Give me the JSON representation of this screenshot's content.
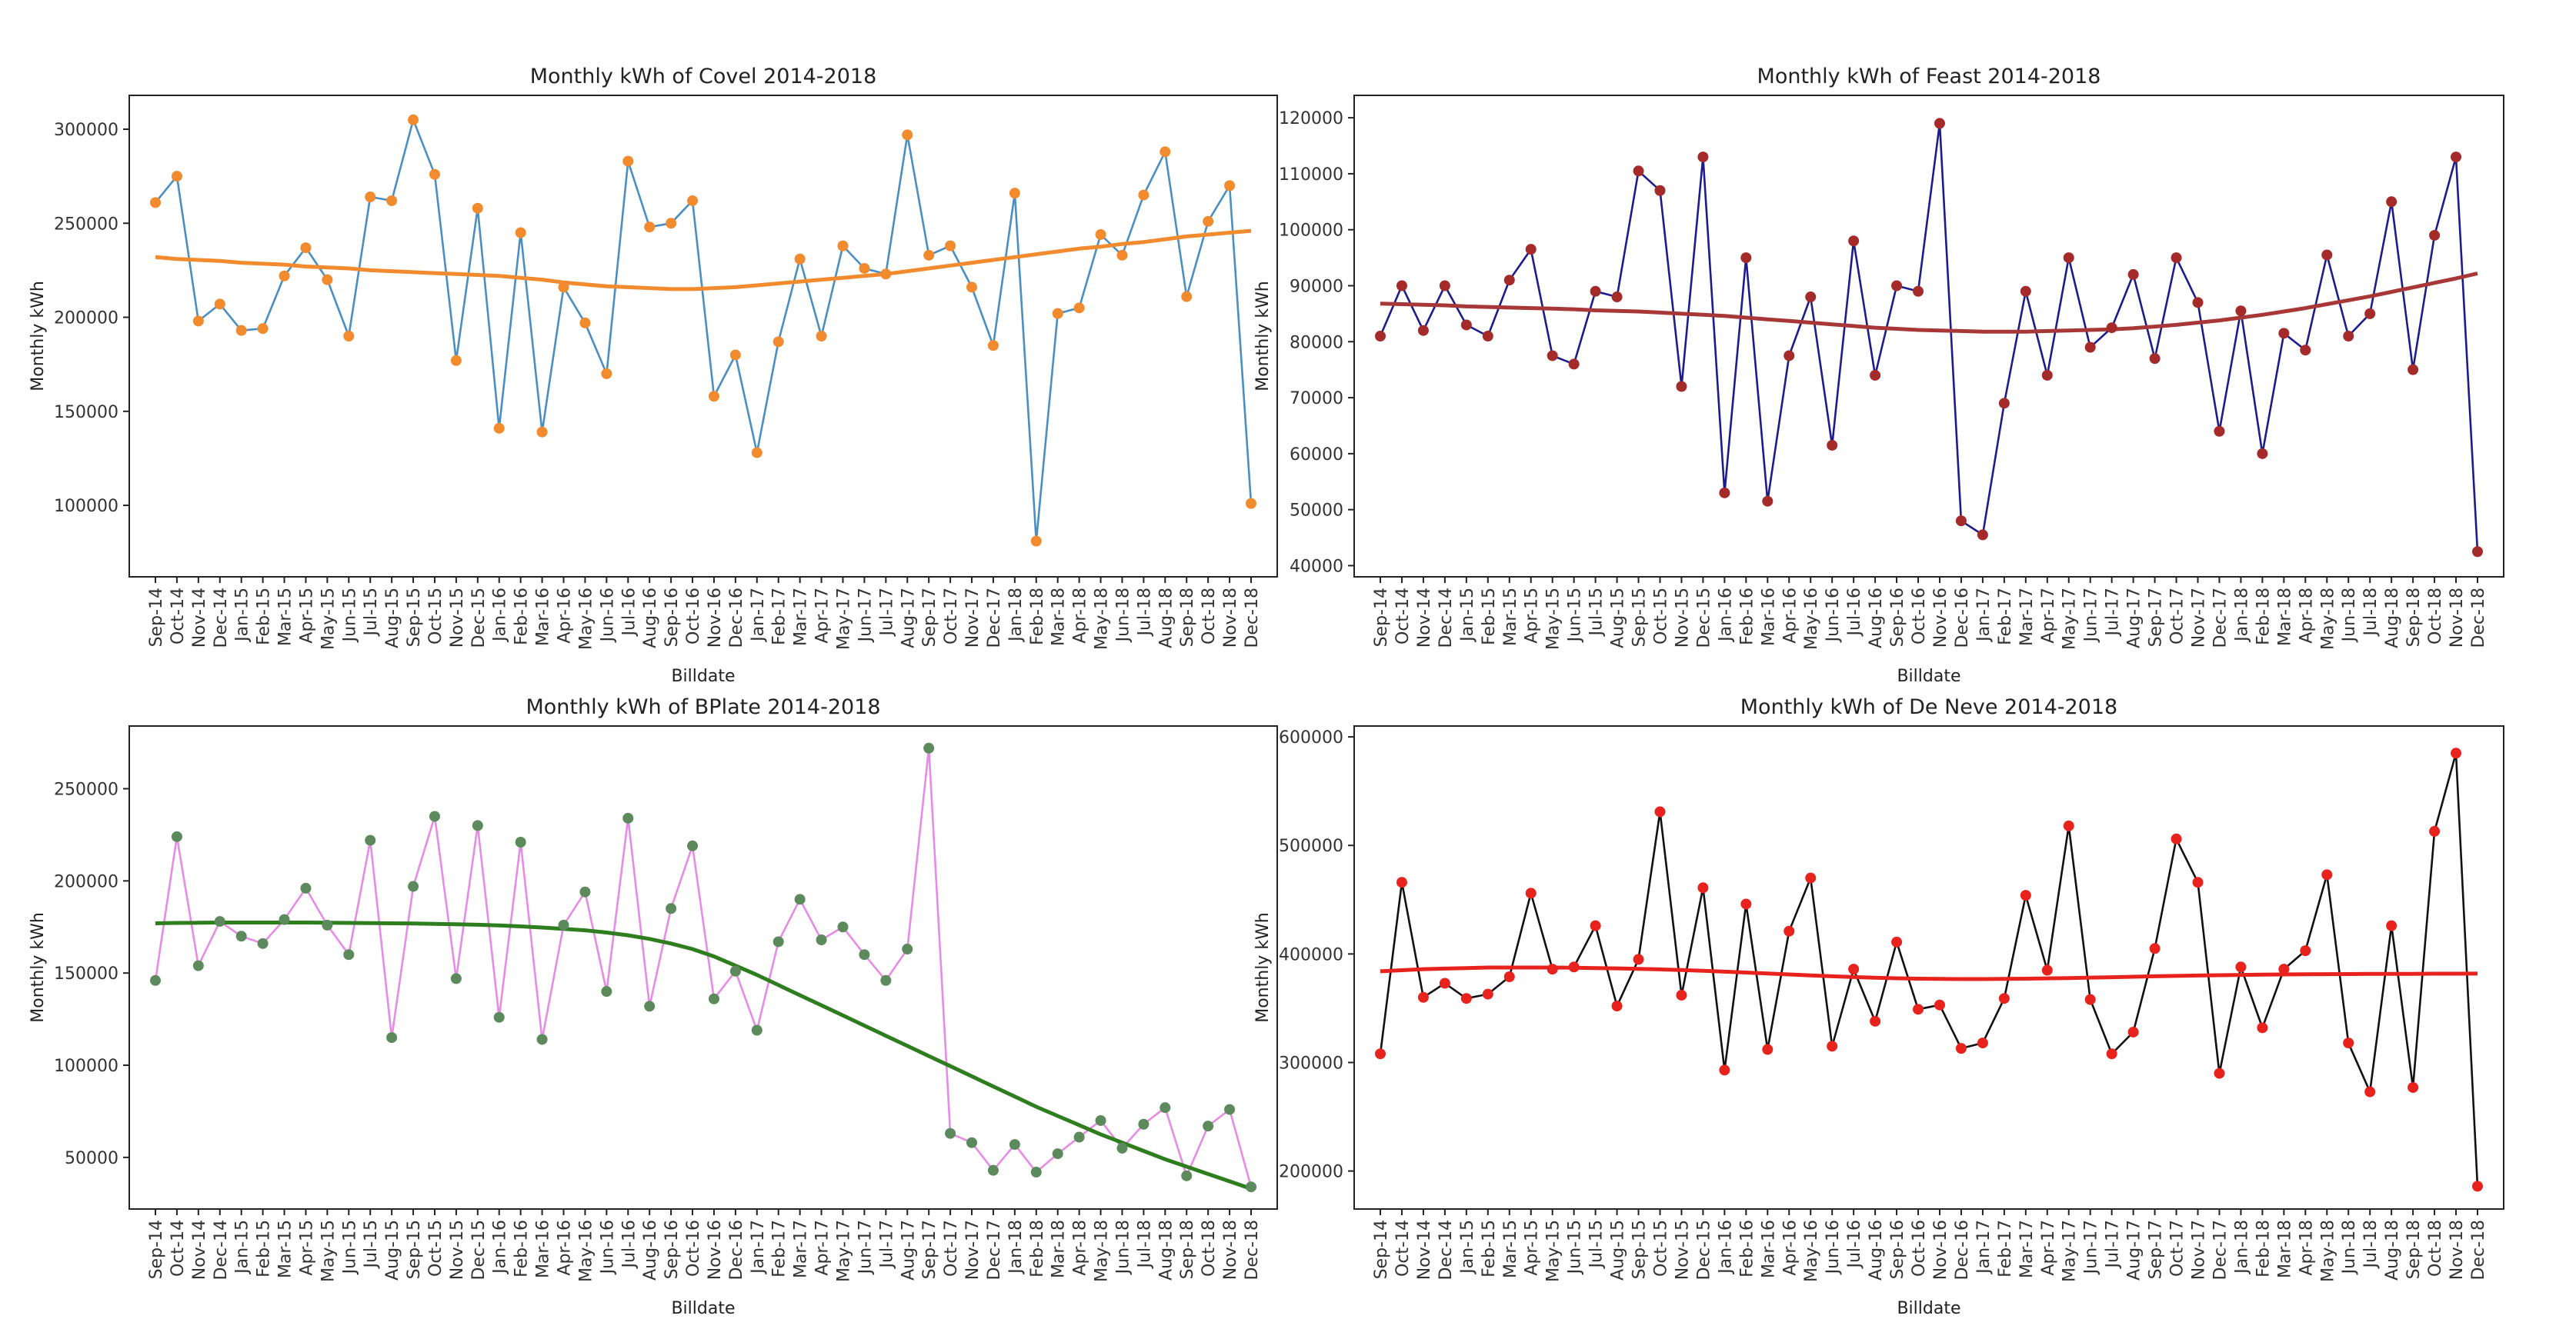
{
  "chart_data": [
    {
      "type": "line",
      "title": "Monthly kWh of Covel 2014-2018",
      "xlabel": "Billdate",
      "ylabel": "Monthly kWh",
      "categories": [
        "Sep-14",
        "Oct-14",
        "Nov-14",
        "Dec-14",
        "Jan-15",
        "Feb-15",
        "Mar-15",
        "Apr-15",
        "May-15",
        "Jun-15",
        "Jul-15",
        "Aug-15",
        "Sep-15",
        "Oct-15",
        "Nov-15",
        "Dec-15",
        "Jan-16",
        "Feb-16",
        "Mar-16",
        "Apr-16",
        "May-16",
        "Jun-16",
        "Jul-16",
        "Aug-16",
        "Sep-16",
        "Oct-16",
        "Nov-16",
        "Dec-16",
        "Jan-17",
        "Feb-17",
        "Mar-17",
        "Apr-17",
        "May-17",
        "Jun-17",
        "Jul-17",
        "Aug-17",
        "Sep-17",
        "Oct-17",
        "Nov-17",
        "Dec-17",
        "Jan-18",
        "Feb-18",
        "Mar-18",
        "Apr-18",
        "May-18",
        "Jun-18",
        "Jul-18",
        "Aug-18",
        "Sep-18",
        "Oct-18",
        "Nov-18",
        "Dec-18"
      ],
      "ylim": [
        62000,
        318000
      ],
      "yticks": [
        100000,
        150000,
        200000,
        250000,
        300000
      ],
      "grid": false,
      "series": [
        {
          "role": "monthly",
          "color": "#4a8ec2",
          "marker_color": "#f28a2e",
          "values": [
            261000,
            275000,
            198000,
            207000,
            193000,
            194000,
            222000,
            237000,
            220000,
            190000,
            264000,
            262000,
            305000,
            276000,
            177000,
            258000,
            141000,
            245000,
            139000,
            216000,
            197000,
            170000,
            283000,
            248000,
            250000,
            262000,
            158000,
            180000,
            128000,
            187000,
            231000,
            190000,
            238000,
            226000,
            223000,
            297000,
            233000,
            238000,
            216000,
            185000,
            266000,
            81000,
            202000,
            205000,
            244000,
            233000,
            265000,
            288000,
            211000,
            251000,
            270000,
            101000
          ]
        },
        {
          "role": "trend",
          "color": "#f28a2e",
          "values": [
            232000,
            231000,
            230500,
            230000,
            229000,
            228500,
            228000,
            227000,
            226500,
            226000,
            225000,
            224500,
            224000,
            223500,
            223000,
            222500,
            222000,
            221000,
            220000,
            218500,
            217500,
            216500,
            216000,
            215500,
            215000,
            215000,
            215500,
            216000,
            217000,
            218000,
            219000,
            220000,
            221000,
            222000,
            223000,
            224500,
            226000,
            227500,
            229000,
            230500,
            232000,
            233500,
            235000,
            236500,
            237500,
            239000,
            240000,
            241500,
            243000,
            244000,
            245000,
            246000
          ]
        }
      ]
    },
    {
      "type": "line",
      "title": "Monthly kWh of Feast 2014-2018",
      "xlabel": "Billdate",
      "ylabel": "Monthly kWh",
      "categories": [
        "Sep-14",
        "Oct-14",
        "Nov-14",
        "Dec-14",
        "Jan-15",
        "Feb-15",
        "Mar-15",
        "Apr-15",
        "May-15",
        "Jun-15",
        "Jul-15",
        "Aug-15",
        "Sep-15",
        "Oct-15",
        "Nov-15",
        "Dec-15",
        "Jan-16",
        "Feb-16",
        "Mar-16",
        "Apr-16",
        "May-16",
        "Jun-16",
        "Jul-16",
        "Aug-16",
        "Sep-16",
        "Oct-16",
        "Nov-16",
        "Dec-16",
        "Jan-17",
        "Feb-17",
        "Mar-17",
        "Apr-17",
        "May-17",
        "Jun-17",
        "Jul-17",
        "Aug-17",
        "Sep-17",
        "Oct-17",
        "Nov-17",
        "Dec-17",
        "Jan-18",
        "Feb-18",
        "Mar-18",
        "Apr-18",
        "May-18",
        "Jun-18",
        "Jul-18",
        "Aug-18",
        "Sep-18",
        "Oct-18",
        "Nov-18",
        "Dec-18"
      ],
      "ylim": [
        38000,
        124000
      ],
      "yticks": [
        40000,
        50000,
        60000,
        70000,
        80000,
        90000,
        100000,
        110000,
        120000
      ],
      "grid": false,
      "series": [
        {
          "role": "monthly",
          "color": "#1c1c8c",
          "marker_color": "#a52a2a",
          "values": [
            81000,
            90000,
            82000,
            90000,
            83000,
            81000,
            91000,
            96500,
            77500,
            76000,
            89000,
            88000,
            110500,
            107000,
            72000,
            113000,
            53000,
            95000,
            51500,
            77500,
            88000,
            61500,
            98000,
            74000,
            90000,
            89000,
            119000,
            48000,
            45500,
            69000,
            89000,
            74000,
            95000,
            79000,
            82500,
            92000,
            77000,
            95000,
            87000,
            64000,
            85500,
            60000,
            81500,
            78500,
            95500,
            81000,
            85000,
            105000,
            75000,
            99000,
            113000,
            42500
          ]
        },
        {
          "role": "trend",
          "color": "#a83838",
          "values": [
            86800,
            86700,
            86600,
            86500,
            86300,
            86200,
            86100,
            86000,
            85900,
            85800,
            85600,
            85500,
            85400,
            85200,
            85000,
            84800,
            84600,
            84300,
            84000,
            83700,
            83400,
            83100,
            82800,
            82500,
            82300,
            82100,
            82000,
            81900,
            81800,
            81800,
            81800,
            81900,
            82000,
            82100,
            82200,
            82400,
            82700,
            83000,
            83400,
            83800,
            84300,
            84800,
            85400,
            86000,
            86700,
            87400,
            88100,
            88900,
            89700,
            90500,
            91300,
            92200
          ]
        }
      ]
    },
    {
      "type": "line",
      "title": "Monthly kWh of BPlate 2014-2018",
      "xlabel": "Billdate",
      "ylabel": "Monthly kWh",
      "categories": [
        "Sep-14",
        "Oct-14",
        "Nov-14",
        "Dec-14",
        "Jan-15",
        "Feb-15",
        "Mar-15",
        "Apr-15",
        "May-15",
        "Jun-15",
        "Jul-15",
        "Aug-15",
        "Sep-15",
        "Oct-15",
        "Nov-15",
        "Dec-15",
        "Jan-16",
        "Feb-16",
        "Mar-16",
        "Apr-16",
        "May-16",
        "Jun-16",
        "Jul-16",
        "Aug-16",
        "Sep-16",
        "Oct-16",
        "Nov-16",
        "Dec-16",
        "Jan-17",
        "Feb-17",
        "Mar-17",
        "Apr-17",
        "May-17",
        "Jun-17",
        "Jul-17",
        "Aug-17",
        "Sep-17",
        "Oct-17",
        "Nov-17",
        "Dec-17",
        "Jan-18",
        "Feb-18",
        "Mar-18",
        "Apr-18",
        "May-18",
        "Jun-18",
        "Jul-18",
        "Aug-18",
        "Sep-18",
        "Oct-18",
        "Nov-18",
        "Dec-18"
      ],
      "ylim": [
        22000,
        284000
      ],
      "yticks": [
        50000,
        100000,
        150000,
        200000,
        250000
      ],
      "grid": false,
      "series": [
        {
          "role": "monthly",
          "color": "#e68be6",
          "marker_color": "#5c8a5c",
          "values": [
            146000,
            224000,
            154000,
            178000,
            170000,
            166000,
            179000,
            196000,
            176000,
            160000,
            222000,
            115000,
            197000,
            235000,
            147000,
            230000,
            126000,
            221000,
            114000,
            176000,
            194000,
            140000,
            234000,
            132000,
            185000,
            219000,
            136000,
            151000,
            119000,
            167000,
            190000,
            168000,
            175000,
            160000,
            146000,
            163000,
            272000,
            63000,
            58000,
            43000,
            57000,
            42000,
            52000,
            61000,
            70000,
            55000,
            68000,
            77000,
            40000,
            67000,
            76000,
            34000
          ]
        },
        {
          "role": "trend",
          "color": "#2e7d1e",
          "values": [
            177000,
            177200,
            177300,
            177400,
            177400,
            177400,
            177400,
            177400,
            177300,
            177200,
            177100,
            177000,
            176900,
            176700,
            176500,
            176200,
            175800,
            175300,
            174700,
            174000,
            173200,
            172000,
            170500,
            168500,
            166000,
            163000,
            159000,
            154000,
            149000,
            143500,
            138000,
            132500,
            127000,
            121500,
            116000,
            110500,
            105000,
            99500,
            94000,
            88500,
            83000,
            77500,
            72500,
            67500,
            62500,
            58000,
            53500,
            49000,
            45000,
            41000,
            37000,
            33000
          ]
        }
      ]
    },
    {
      "type": "line",
      "title": "Monthly kWh of De Neve 2014-2018",
      "xlabel": "Billdate",
      "ylabel": "Monthly kWh",
      "categories": [
        "Sep-14",
        "Oct-14",
        "Nov-14",
        "Dec-14",
        "Jan-15",
        "Feb-15",
        "Mar-15",
        "Apr-15",
        "May-15",
        "Jun-15",
        "Jul-15",
        "Aug-15",
        "Sep-15",
        "Oct-15",
        "Nov-15",
        "Dec-15",
        "Jan-16",
        "Feb-16",
        "Mar-16",
        "Apr-16",
        "May-16",
        "Jun-16",
        "Jul-16",
        "Aug-16",
        "Sep-16",
        "Oct-16",
        "Nov-16",
        "Dec-16",
        "Jan-17",
        "Feb-17",
        "Mar-17",
        "Apr-17",
        "May-17",
        "Jun-17",
        "Jul-17",
        "Aug-17",
        "Sep-17",
        "Oct-17",
        "Nov-17",
        "Dec-17",
        "Jan-18",
        "Feb-18",
        "Mar-18",
        "Apr-18",
        "May-18",
        "Jun-18",
        "Jul-18",
        "Aug-18",
        "Sep-18",
        "Oct-18",
        "Nov-18",
        "Dec-18"
      ],
      "ylim": [
        165000,
        610000
      ],
      "yticks": [
        200000,
        300000,
        400000,
        500000,
        600000
      ],
      "grid": false,
      "series": [
        {
          "role": "monthly",
          "color": "#111111",
          "marker_color": "#e8231e",
          "values": [
            308000,
            466000,
            360000,
            373000,
            359000,
            363000,
            379000,
            456000,
            386000,
            388000,
            426000,
            352000,
            395000,
            531000,
            362000,
            461000,
            293000,
            446000,
            312000,
            421000,
            470000,
            315000,
            386000,
            338000,
            411000,
            349000,
            353000,
            313000,
            318000,
            359000,
            454000,
            385000,
            518000,
            358000,
            308000,
            328000,
            405000,
            506000,
            466000,
            290000,
            388000,
            332000,
            386000,
            403000,
            473000,
            318000,
            273000,
            426000,
            277000,
            513000,
            585000,
            186000
          ]
        },
        {
          "role": "trend",
          "color": "#e8231e",
          "values": [
            384000,
            385000,
            386000,
            386500,
            387000,
            387500,
            387500,
            387500,
            387500,
            387300,
            387000,
            386700,
            386300,
            385800,
            385200,
            384500,
            383700,
            382900,
            382000,
            381100,
            380200,
            379400,
            378700,
            378100,
            377600,
            377200,
            377000,
            376900,
            376900,
            377000,
            377200,
            377500,
            377800,
            378200,
            378600,
            379000,
            379400,
            379800,
            380100,
            380400,
            380700,
            380900,
            381100,
            381300,
            381400,
            381500,
            381600,
            381700,
            381700,
            381800,
            381800,
            381900
          ]
        }
      ]
    }
  ]
}
